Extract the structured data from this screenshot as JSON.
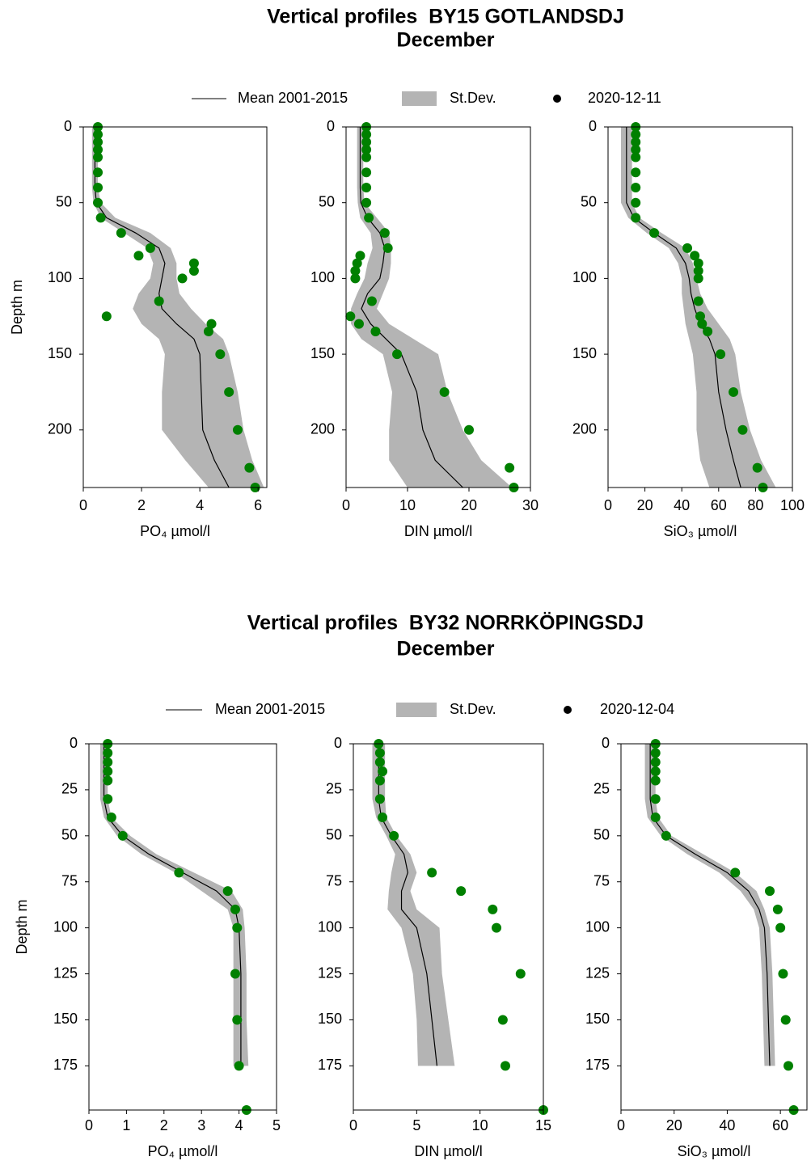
{
  "chart_data": [
    {
      "type": "profile",
      "title": "Vertical profiles  BY15 GOTLANDSDJ",
      "subtitle": "December",
      "legend": [
        {
          "name": "Mean 2001-2015",
          "color": "#000000"
        },
        {
          "name": "St.Dev.",
          "color": "#b4b4b4"
        },
        {
          "name": "2020-12-11",
          "color": "#000000"
        }
      ],
      "point_color": "#008000",
      "ylabel": "Depth m",
      "y_inverted": true,
      "ylim": [
        0,
        238
      ],
      "yticks": [
        0,
        50,
        100,
        150,
        200
      ],
      "depth": [
        0,
        10,
        20,
        30,
        40,
        50,
        60,
        70,
        80,
        90,
        100,
        110,
        120,
        130,
        140,
        150,
        175,
        200,
        220,
        238
      ],
      "panels": [
        {
          "xlabel": "PO₄ µmol/l",
          "xlim": [
            0,
            6.3
          ],
          "xticks": [
            0,
            2,
            4,
            6
          ],
          "mean": [
            0.4,
            0.4,
            0.4,
            0.4,
            0.4,
            0.45,
            0.8,
            1.8,
            2.6,
            2.8,
            2.7,
            2.6,
            2.7,
            3.2,
            3.8,
            4.0,
            4.05,
            4.1,
            4.5,
            5.0
          ],
          "sd_low": [
            0.3,
            0.3,
            0.3,
            0.3,
            0.3,
            0.35,
            0.6,
            1.4,
            2.2,
            2.4,
            2.3,
            1.9,
            1.7,
            2.0,
            2.6,
            2.8,
            2.7,
            2.7,
            3.5,
            4.3
          ],
          "sd_high": [
            0.5,
            0.5,
            0.5,
            0.5,
            0.5,
            0.6,
            1.1,
            2.3,
            3.0,
            3.2,
            3.2,
            3.3,
            3.7,
            4.2,
            4.8,
            5.0,
            5.3,
            5.5,
            5.8,
            6.2
          ],
          "obs_depth": [
            0,
            5,
            10,
            15,
            20,
            30,
            40,
            50,
            60,
            70,
            80,
            85,
            90,
            95,
            100,
            115,
            125,
            130,
            135,
            150,
            175,
            200,
            225,
            238
          ],
          "obs": [
            0.5,
            0.5,
            0.5,
            0.5,
            0.5,
            0.5,
            0.5,
            0.5,
            0.6,
            1.3,
            2.3,
            1.9,
            3.8,
            3.8,
            3.4,
            2.6,
            0.8,
            4.4,
            4.3,
            4.7,
            5.0,
            5.3,
            5.7,
            5.9
          ]
        },
        {
          "xlabel": "DIN µmol/l",
          "xlim": [
            0,
            30
          ],
          "xticks": [
            0,
            10,
            20,
            30
          ],
          "mean": [
            2.3,
            2.3,
            2.3,
            2.3,
            2.3,
            2.4,
            3.5,
            5.5,
            6.3,
            6.0,
            5.5,
            3.5,
            2.5,
            4.0,
            6.5,
            9.0,
            11.5,
            12.5,
            14.5,
            19
          ],
          "sd_low": [
            1.8,
            1.8,
            1.8,
            1.8,
            1.8,
            1.9,
            2.3,
            4.0,
            4.3,
            3.5,
            3.0,
            1.8,
            0.8,
            0.8,
            2.5,
            6,
            7.5,
            7,
            7,
            10
          ],
          "sd_high": [
            2.8,
            2.8,
            2.8,
            2.8,
            2.8,
            3.0,
            5,
            7,
            7.3,
            7.3,
            7.0,
            6,
            5,
            7,
            11,
            15,
            16.5,
            19,
            22,
            27
          ],
          "obs_depth": [
            0,
            5,
            10,
            15,
            20,
            30,
            40,
            50,
            60,
            70,
            80,
            85,
            90,
            95,
            100,
            115,
            125,
            130,
            135,
            150,
            175,
            200,
            225,
            238
          ],
          "obs": [
            3.3,
            3.3,
            3.3,
            3.3,
            3.3,
            3.3,
            3.3,
            3.3,
            3.7,
            6.3,
            6.8,
            2.3,
            1.8,
            1.5,
            1.5,
            4.2,
            0.7,
            2.1,
            4.8,
            8.3,
            16,
            20,
            26.6,
            27.3
          ]
        },
        {
          "xlabel": "SiO₃ µmol/l",
          "xlim": [
            0,
            100
          ],
          "xticks": [
            0,
            20,
            40,
            60,
            80,
            100
          ],
          "mean": [
            10,
            10,
            10,
            10,
            10,
            10,
            14,
            25,
            37,
            42,
            44,
            45,
            47,
            50,
            55,
            58,
            60,
            64,
            68,
            72
          ],
          "sd_low": [
            7,
            7,
            7,
            7,
            7,
            7,
            11,
            21,
            33,
            38,
            40,
            40,
            41,
            42,
            44,
            46,
            48,
            48,
            50,
            55
          ],
          "sd_high": [
            13,
            13,
            13,
            13,
            13,
            13,
            17,
            29,
            42,
            46,
            48,
            50,
            54,
            60,
            66,
            69,
            72,
            77,
            83,
            91
          ],
          "obs_depth": [
            0,
            5,
            10,
            15,
            20,
            30,
            40,
            50,
            60,
            70,
            80,
            85,
            90,
            95,
            100,
            115,
            125,
            130,
            135,
            150,
            175,
            200,
            225,
            238
          ],
          "obs": [
            15,
            15,
            15,
            15,
            15,
            15,
            15,
            15,
            15,
            25,
            43,
            47,
            49,
            49,
            49,
            49,
            50,
            51,
            54,
            61,
            68,
            73,
            81,
            84
          ]
        }
      ]
    },
    {
      "type": "profile",
      "title": "Vertical profiles  BY32 NORRKÖPINGSDJ",
      "subtitle": "December",
      "legend": [
        {
          "name": "Mean 2001-2015",
          "color": "#000000"
        },
        {
          "name": "St.Dev.",
          "color": "#b4b4b4"
        },
        {
          "name": "2020-12-04",
          "color": "#000000"
        }
      ],
      "point_color": "#008000",
      "ylabel": "Depth m",
      "y_inverted": true,
      "ylim": [
        0,
        199
      ],
      "yticks": [
        0,
        25,
        50,
        75,
        100,
        125,
        150,
        175
      ],
      "depth": [
        0,
        10,
        20,
        30,
        40,
        50,
        60,
        70,
        80,
        90,
        100,
        125,
        150,
        175
      ],
      "panels": [
        {
          "xlabel": "PO₄ µmol/l",
          "xlim": [
            0,
            5
          ],
          "xticks": [
            0,
            1,
            2,
            3,
            4,
            5
          ],
          "mean": [
            0.4,
            0.4,
            0.4,
            0.4,
            0.5,
            0.9,
            1.6,
            2.5,
            3.4,
            3.9,
            4.0,
            4.05,
            4.05,
            4.05
          ],
          "sd_low": [
            0.3,
            0.3,
            0.3,
            0.3,
            0.4,
            0.75,
            1.4,
            2.3,
            3.0,
            3.7,
            3.85,
            3.85,
            3.85,
            3.85
          ],
          "sd_high": [
            0.5,
            0.5,
            0.5,
            0.5,
            0.6,
            1.1,
            1.8,
            2.8,
            3.8,
            4.1,
            4.15,
            4.2,
            4.2,
            4.25
          ],
          "obs_depth": [
            0,
            5,
            10,
            15,
            20,
            30,
            40,
            50,
            70,
            80,
            90,
            100,
            125,
            150,
            175,
            199
          ],
          "obs": [
            0.5,
            0.5,
            0.5,
            0.5,
            0.5,
            0.5,
            0.6,
            0.9,
            2.4,
            3.7,
            3.9,
            3.95,
            3.9,
            3.95,
            4.0,
            4.2
          ]
        },
        {
          "xlabel": "DIN µmol/l",
          "xlim": [
            0,
            15
          ],
          "xticks": [
            0,
            5,
            10,
            15
          ],
          "mean": [
            2.0,
            2.0,
            2.0,
            2.0,
            2.2,
            3.0,
            4.0,
            4.3,
            3.8,
            3.8,
            5.0,
            5.8,
            6.2,
            6.6
          ],
          "sd_low": [
            1.5,
            1.5,
            1.5,
            1.5,
            1.8,
            2.6,
            3.3,
            3.0,
            2.8,
            2.7,
            3.8,
            4.7,
            5.0,
            5.1
          ],
          "sd_high": [
            2.5,
            2.5,
            2.5,
            2.5,
            2.6,
            3.4,
            4.5,
            5.0,
            4.5,
            5.0,
            6.8,
            7.0,
            7.5,
            8.0
          ],
          "obs_depth": [
            0,
            5,
            10,
            15,
            20,
            30,
            40,
            50,
            70,
            80,
            90,
            100,
            125,
            150,
            175,
            199
          ],
          "obs": [
            2.0,
            2.1,
            2.1,
            2.3,
            2.1,
            2.1,
            2.3,
            3.2,
            6.2,
            8.5,
            11,
            11.3,
            13.2,
            11.8,
            12,
            15
          ]
        },
        {
          "xlabel": "SiO₃ µmol/l",
          "xlim": [
            0,
            70
          ],
          "xticks": [
            0,
            20,
            40,
            60
          ],
          "mean": [
            11,
            11,
            11,
            11,
            12,
            17,
            28,
            40,
            48,
            52,
            54,
            55,
            55.5,
            56
          ],
          "sd_low": [
            9,
            9,
            9,
            9,
            10,
            15,
            25,
            37,
            45,
            50,
            52,
            53,
            53.5,
            54
          ],
          "sd_high": [
            13,
            13,
            13,
            13,
            14,
            19,
            31,
            43,
            51,
            54,
            56,
            57,
            57.5,
            58
          ],
          "obs_depth": [
            0,
            5,
            10,
            15,
            20,
            30,
            40,
            50,
            70,
            80,
            90,
            100,
            125,
            150,
            175,
            199
          ],
          "obs": [
            13,
            13,
            13,
            13,
            13,
            13,
            13,
            17,
            43,
            56,
            59,
            60,
            61,
            62,
            63,
            65
          ]
        }
      ]
    }
  ]
}
